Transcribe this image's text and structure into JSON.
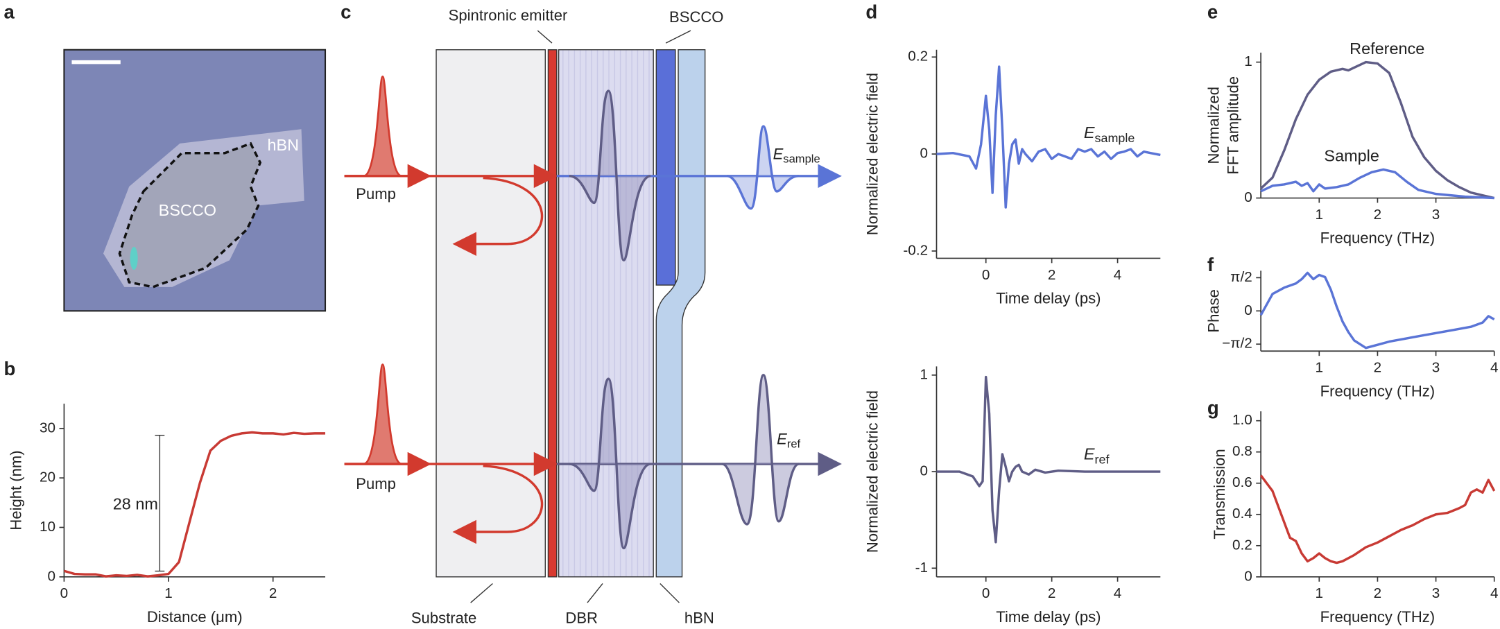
{
  "panel_labels": [
    "a",
    "b",
    "c",
    "d",
    "e",
    "f",
    "g"
  ],
  "micrograph": {
    "labels": [
      "hBN",
      "BSCCO"
    ]
  },
  "schematic": {
    "top_labels": [
      "Spintronic emitter",
      "BSCCO"
    ],
    "pump": [
      "Pump",
      "Pump"
    ],
    "bottom_labels": [
      "Substrate",
      "DBR",
      "hBN"
    ],
    "outputs": [
      {
        "text": "E",
        "subscript": "sample"
      },
      {
        "text": "E",
        "subscript": "ref"
      }
    ]
  },
  "chart_data": [
    {
      "type": "line",
      "xlabel": "Distance (μm)",
      "ylabel": "Height (nm)",
      "xlim": [
        0,
        2.5
      ],
      "ylim": [
        0,
        35
      ],
      "xticks": [
        0,
        1,
        2
      ],
      "yticks": [
        0,
        10,
        20,
        30
      ],
      "annotations": [
        {
          "text": "28 nm"
        }
      ],
      "series": [
        {
          "color": "#c83a34",
          "x": [
            0,
            0.1,
            0.2,
            0.3,
            0.4,
            0.5,
            0.6,
            0.7,
            0.8,
            0.9,
            1.0,
            1.1,
            1.2,
            1.3,
            1.4,
            1.5,
            1.6,
            1.7,
            1.8,
            1.9,
            2.0,
            2.1,
            2.2,
            2.3,
            2.4,
            2.5
          ],
          "values": [
            1.2,
            0.6,
            0.5,
            0.5,
            0.1,
            0.3,
            0.2,
            0.4,
            0.1,
            0.3,
            0.6,
            3,
            11,
            19,
            25.5,
            27.5,
            28.5,
            29,
            29.2,
            29,
            29,
            28.8,
            29.1,
            28.9,
            29,
            29
          ]
        }
      ]
    },
    {
      "type": "line",
      "xlabel": "Time delay (ps)",
      "ylabel": "Normalized electric field",
      "xlim": [
        -1.5,
        5.3
      ],
      "ylim": [
        -0.215,
        0.215
      ],
      "xticks": [
        0,
        2,
        4
      ],
      "yticks": [
        0.2,
        0,
        -0.2
      ],
      "annotations": [
        {
          "text": "E",
          "subscript": "sample"
        }
      ],
      "series": [
        {
          "color": "#5a74d6",
          "x": [
            -1.5,
            -1.0,
            -0.5,
            -0.3,
            -0.15,
            0,
            0.1,
            0.2,
            0.3,
            0.4,
            0.5,
            0.6,
            0.7,
            0.8,
            0.9,
            1.0,
            1.1,
            1.2,
            1.4,
            1.6,
            1.8,
            2.0,
            2.2,
            2.4,
            2.6,
            2.8,
            3.0,
            3.2,
            3.4,
            3.6,
            3.8,
            4.0,
            4.2,
            4.4,
            4.6,
            4.8,
            5.0,
            5.3
          ],
          "values": [
            0,
            0.002,
            -0.005,
            -0.03,
            0.02,
            0.12,
            0.05,
            -0.08,
            0.08,
            0.18,
            0.05,
            -0.11,
            -0.02,
            0.02,
            0.03,
            -0.02,
            0.01,
            0,
            -0.015,
            0.005,
            0.01,
            -0.01,
            0,
            -0.005,
            -0.01,
            0.01,
            0.005,
            0.01,
            -0.005,
            0.005,
            -0.01,
            0.002,
            0.005,
            0.01,
            -0.005,
            0.005,
            0.002,
            -0.002
          ]
        }
      ]
    },
    {
      "type": "line",
      "xlabel": "Time delay (ps)",
      "ylabel": "Normalized electric field",
      "xlim": [
        -1.5,
        5.3
      ],
      "ylim": [
        -1.09,
        1.09
      ],
      "xticks": [
        0,
        2,
        4
      ],
      "yticks": [
        1,
        0,
        -1
      ],
      "annotations": [
        {
          "text": "E",
          "subscript": "ref"
        }
      ],
      "series": [
        {
          "color": "#5f5d86",
          "x": [
            -1.5,
            -0.8,
            -0.4,
            -0.2,
            -0.1,
            0,
            0.1,
            0.2,
            0.3,
            0.4,
            0.5,
            0.6,
            0.7,
            0.8,
            0.9,
            1.0,
            1.1,
            1.3,
            1.5,
            1.8,
            2.2,
            3,
            4,
            5.3
          ],
          "values": [
            0,
            0,
            -0.05,
            -0.15,
            -0.1,
            0.98,
            0.6,
            -0.4,
            -0.73,
            -0.2,
            0.18,
            0.05,
            -0.1,
            0,
            0.05,
            0.07,
            0,
            -0.03,
            0.02,
            -0.01,
            0.01,
            0,
            0,
            0
          ]
        }
      ]
    },
    {
      "type": "line",
      "xlabel": "Frequency (THz)",
      "ylabel": [
        "Normalized",
        "FFT amplitude"
      ],
      "xlim": [
        0,
        4
      ],
      "ylim": [
        0,
        1.07
      ],
      "xticks": [
        1,
        2,
        3
      ],
      "yticks": [
        0,
        1
      ],
      "series": [
        {
          "name": "Reference",
          "color": "#5f5d86",
          "x": [
            0,
            0.2,
            0.4,
            0.6,
            0.8,
            1.0,
            1.2,
            1.4,
            1.5,
            1.6,
            1.8,
            2.0,
            2.2,
            2.4,
            2.6,
            2.8,
            3.0,
            3.2,
            3.4,
            3.6,
            3.8,
            4.0
          ],
          "values": [
            0.07,
            0.15,
            0.35,
            0.58,
            0.76,
            0.87,
            0.93,
            0.95,
            0.94,
            0.96,
            1.0,
            0.99,
            0.92,
            0.7,
            0.45,
            0.3,
            0.2,
            0.13,
            0.08,
            0.04,
            0.02,
            0
          ]
        },
        {
          "name": "Sample",
          "color": "#5a74d6",
          "x": [
            0,
            0.2,
            0.4,
            0.6,
            0.7,
            0.8,
            0.9,
            1.0,
            1.1,
            1.3,
            1.5,
            1.7,
            1.9,
            2.1,
            2.3,
            2.5,
            2.7,
            3.0,
            3.5,
            4.0
          ],
          "values": [
            0.05,
            0.09,
            0.1,
            0.12,
            0.09,
            0.11,
            0.05,
            0.1,
            0.07,
            0.08,
            0.1,
            0.15,
            0.19,
            0.21,
            0.19,
            0.12,
            0.06,
            0.03,
            0.01,
            0
          ]
        }
      ]
    },
    {
      "type": "line",
      "xlabel": "Frequency (THz)",
      "ylabel": "Phase",
      "xlim": [
        0,
        4
      ],
      "ylim": [
        -1.9,
        1.9
      ],
      "xticks": [
        1,
        2,
        3,
        4
      ],
      "yticks": [
        {
          "value": 1.5708,
          "label": "π/2"
        },
        0,
        {
          "value": -1.5708,
          "label": "−π/2"
        }
      ],
      "series": [
        {
          "color": "#5a74d6",
          "x": [
            0,
            0.1,
            0.2,
            0.4,
            0.6,
            0.7,
            0.8,
            0.9,
            1.0,
            1.1,
            1.2,
            1.3,
            1.4,
            1.5,
            1.6,
            1.8,
            2.0,
            2.2,
            2.5,
            2.8,
            3.0,
            3.3,
            3.6,
            3.8,
            3.9,
            4.0
          ],
          "values": [
            -0.2,
            0.3,
            0.8,
            1.1,
            1.3,
            1.5,
            1.8,
            1.5,
            1.7,
            1.6,
            1.0,
            0.2,
            -0.5,
            -1.0,
            -1.4,
            -1.75,
            -1.6,
            -1.45,
            -1.3,
            -1.15,
            -1.05,
            -0.9,
            -0.75,
            -0.55,
            -0.25,
            -0.4
          ]
        }
      ]
    },
    {
      "type": "line",
      "xlabel": "Frequency (THz)",
      "ylabel": "Transmission",
      "xlim": [
        0,
        4
      ],
      "ylim": [
        0,
        1.06
      ],
      "xticks": [
        1,
        2,
        3,
        4
      ],
      "yticks": [
        0,
        0.2,
        0.4,
        0.6,
        0.8,
        {
          "value": 1,
          "label": "1.0"
        }
      ],
      "series": [
        {
          "color": "#c83a34",
          "x": [
            0,
            0.1,
            0.2,
            0.3,
            0.4,
            0.5,
            0.6,
            0.7,
            0.8,
            0.9,
            1.0,
            1.1,
            1.2,
            1.3,
            1.4,
            1.6,
            1.8,
            2.0,
            2.2,
            2.4,
            2.6,
            2.8,
            3.0,
            3.2,
            3.4,
            3.5,
            3.6,
            3.7,
            3.8,
            3.9,
            4.0
          ],
          "values": [
            0.65,
            0.6,
            0.55,
            0.45,
            0.35,
            0.25,
            0.23,
            0.15,
            0.1,
            0.12,
            0.15,
            0.12,
            0.1,
            0.09,
            0.1,
            0.14,
            0.19,
            0.22,
            0.26,
            0.3,
            0.33,
            0.37,
            0.4,
            0.41,
            0.44,
            0.46,
            0.54,
            0.56,
            0.54,
            0.62,
            0.55
          ]
        }
      ]
    }
  ]
}
